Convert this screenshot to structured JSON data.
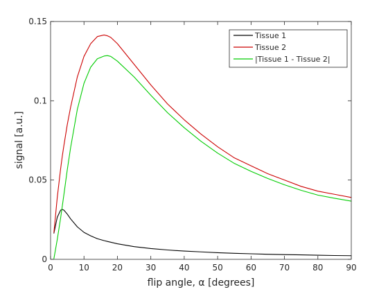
{
  "chart_data": {
    "type": "line",
    "xlabel": "flip angle, α [degrees]",
    "ylabel": "signal [a.u.]",
    "xlim": [
      0,
      90
    ],
    "ylim": [
      0,
      0.15
    ],
    "xticks": [
      0,
      10,
      20,
      30,
      40,
      50,
      60,
      70,
      80,
      90
    ],
    "xtick_labels": [
      "0",
      "10",
      "20",
      "30",
      "40",
      "50",
      "60",
      "70",
      "80",
      "90"
    ],
    "yticks": [
      0,
      0.05,
      0.1,
      0.15
    ],
    "ytick_labels": [
      "0",
      "0.05",
      "0.1",
      "0.15"
    ],
    "grid": false,
    "legend_position": "top-right",
    "x": [
      1,
      2,
      3,
      3.5,
      4,
      5,
      6,
      8,
      10,
      12,
      14,
      16,
      17,
      18,
      20,
      25,
      30,
      35,
      40,
      45,
      50,
      55,
      60,
      65,
      70,
      75,
      80,
      85,
      90
    ],
    "series": [
      {
        "name": "Tissue 1",
        "color": "#000000",
        "values": [
          0.0165,
          0.0265,
          0.031,
          0.0315,
          0.031,
          0.0285,
          0.0255,
          0.0205,
          0.017,
          0.0148,
          0.013,
          0.0118,
          0.0113,
          0.0108,
          0.0098,
          0.008,
          0.0068,
          0.0059,
          0.0052,
          0.0047,
          0.0042,
          0.0038,
          0.0035,
          0.0032,
          0.003,
          0.0028,
          0.0026,
          0.0024,
          0.0023
        ]
      },
      {
        "name": "Tissue 2",
        "color": "#cc0000",
        "values": [
          0.017,
          0.039,
          0.057,
          0.065,
          0.072,
          0.085,
          0.096,
          0.115,
          0.128,
          0.136,
          0.1405,
          0.1415,
          0.141,
          0.14,
          0.136,
          0.123,
          0.11,
          0.098,
          0.088,
          0.079,
          0.071,
          0.064,
          0.059,
          0.054,
          0.05,
          0.046,
          0.043,
          0.041,
          0.039
        ]
      },
      {
        "name": "|Tissue 1 - Tissue 2|",
        "color": "#00cc00",
        "values": [
          0.0005,
          0.0125,
          0.026,
          0.0335,
          0.041,
          0.0565,
          0.0705,
          0.0945,
          0.111,
          0.1212,
          0.1265,
          0.1282,
          0.1285,
          0.128,
          0.125,
          0.115,
          0.1035,
          0.0925,
          0.083,
          0.0745,
          0.067,
          0.0605,
          0.0555,
          0.051,
          0.047,
          0.0435,
          0.0405,
          0.0385,
          0.0367
        ]
      }
    ]
  }
}
